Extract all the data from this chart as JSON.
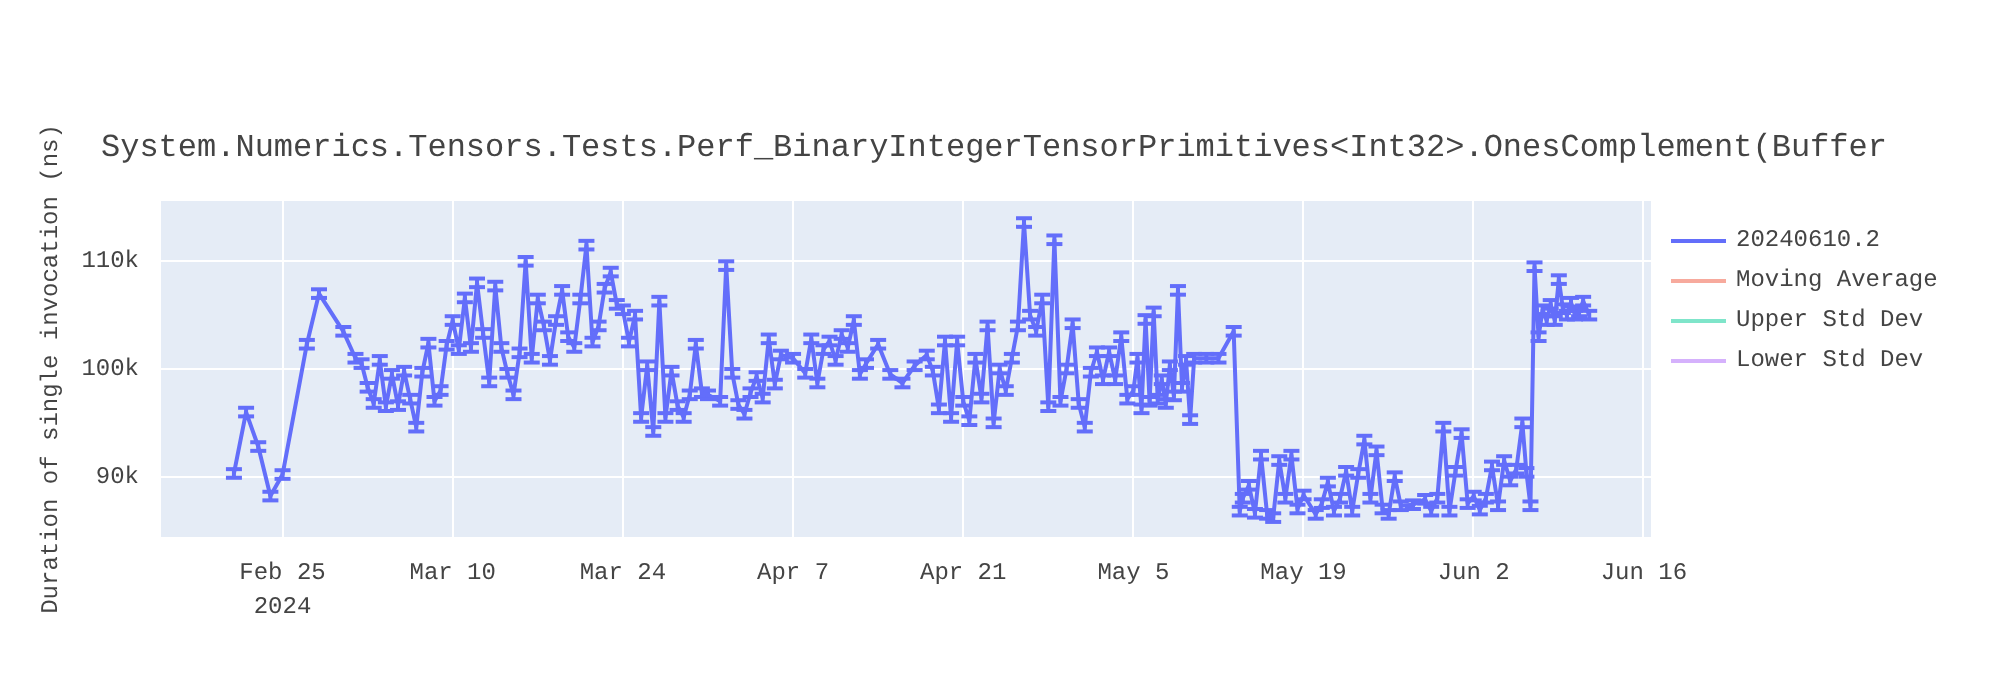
{
  "chart_data": {
    "type": "line",
    "title": "System.Numerics.Tensors.Tests.Perf_BinaryIntegerTensorPrimitives<Int32>.OnesComplement(Buffer",
    "ylabel": "Duration of single invocation (ns)",
    "xlim": [
      "2024-02-15",
      "2024-06-16T14:00"
    ],
    "xticks": [
      {
        "value": "2024-02-25",
        "label": "Feb 25\n2024"
      },
      {
        "value": "2024-03-10",
        "label": "Mar 10"
      },
      {
        "value": "2024-03-24",
        "label": "Mar 24"
      },
      {
        "value": "2024-04-07",
        "label": "Apr 7"
      },
      {
        "value": "2024-04-21",
        "label": "Apr 21"
      },
      {
        "value": "2024-05-05",
        "label": "May 5"
      },
      {
        "value": "2024-05-19",
        "label": "May 19"
      },
      {
        "value": "2024-06-02",
        "label": "Jun 2"
      },
      {
        "value": "2024-06-16",
        "label": "Jun 16"
      }
    ],
    "ylim": [
      84400,
      115600
    ],
    "yticks": [
      {
        "value": 90000,
        "label": "90k"
      },
      {
        "value": 100000,
        "label": "100k"
      },
      {
        "value": 110000,
        "label": "110k"
      }
    ],
    "grid": true,
    "legend": "right",
    "line_style": "solid",
    "series": [
      {
        "name": "20240610.2",
        "color": "#636efa",
        "x": [
          "2024-02-21",
          "2024-02-22",
          "2024-02-23",
          "2024-02-24",
          "2024-02-25",
          "2024-02-27",
          "2024-02-28",
          "2024-03-01",
          "2024-03-02",
          "2024-03-02T12:00",
          "2024-03-03",
          "2024-03-03T12:00",
          "2024-03-04",
          "2024-03-04T12:00",
          "2024-03-05",
          "2024-03-05T12:00",
          "2024-03-06",
          "2024-03-06T12:00",
          "2024-03-07",
          "2024-03-07T12:00",
          "2024-03-08",
          "2024-03-08T12:00",
          "2024-03-09",
          "2024-03-09T12:00",
          "2024-03-10",
          "2024-03-10T12:00",
          "2024-03-11",
          "2024-03-11T12:00",
          "2024-03-12",
          "2024-03-12T12:00",
          "2024-03-13",
          "2024-03-13T12:00",
          "2024-03-14",
          "2024-03-14T12:00",
          "2024-03-15",
          "2024-03-15T12:00",
          "2024-03-16",
          "2024-03-16T12:00",
          "2024-03-17",
          "2024-03-17T12:00",
          "2024-03-18",
          "2024-03-18T12:00",
          "2024-03-19",
          "2024-03-19T12:00",
          "2024-03-20",
          "2024-03-20T12:00",
          "2024-03-21",
          "2024-03-21T12:00",
          "2024-03-22",
          "2024-03-22T12:00",
          "2024-03-23",
          "2024-03-23T12:00",
          "2024-03-24",
          "2024-03-24T12:00",
          "2024-03-25",
          "2024-03-25T12:00",
          "2024-03-26",
          "2024-03-26T12:00",
          "2024-03-27",
          "2024-03-27T12:00",
          "2024-03-28",
          "2024-03-28T12:00",
          "2024-03-29",
          "2024-03-29T12:00",
          "2024-03-30",
          "2024-03-30T12:00",
          "2024-03-31",
          "2024-04-01",
          "2024-04-01T12:00",
          "2024-04-02",
          "2024-04-02T12:00",
          "2024-04-03",
          "2024-04-03T12:00",
          "2024-04-04",
          "2024-04-04T12:00",
          "2024-04-05",
          "2024-04-05T12:00",
          "2024-04-06",
          "2024-04-07",
          "2024-04-08",
          "2024-04-08T12:00",
          "2024-04-09",
          "2024-04-09T12:00",
          "2024-04-10",
          "2024-04-10T12:00",
          "2024-04-11",
          "2024-04-11T12:00",
          "2024-04-12",
          "2024-04-12T12:00",
          "2024-04-13",
          "2024-04-14",
          "2024-04-15",
          "2024-04-16",
          "2024-04-17",
          "2024-04-18",
          "2024-04-18T12:00",
          "2024-04-19",
          "2024-04-19T12:00",
          "2024-04-20",
          "2024-04-20T12:00",
          "2024-04-21",
          "2024-04-21T12:00",
          "2024-04-22",
          "2024-04-22T12:00",
          "2024-04-23",
          "2024-04-23T12:00",
          "2024-04-24",
          "2024-04-24T12:00",
          "2024-04-25",
          "2024-04-25T12:00",
          "2024-04-26",
          "2024-04-26T12:00",
          "2024-04-27",
          "2024-04-27T12:00",
          "2024-04-28",
          "2024-04-28T12:00",
          "2024-04-29",
          "2024-04-29T12:00",
          "2024-04-30",
          "2024-04-30T12:00",
          "2024-05-01",
          "2024-05-01T12:00",
          "2024-05-02",
          "2024-05-02T12:00",
          "2024-05-03",
          "2024-05-03T12:00",
          "2024-05-04",
          "2024-05-04T12:00",
          "2024-05-05",
          "2024-05-05T08:00",
          "2024-05-05T16:00",
          "2024-05-06",
          "2024-05-06T08:00",
          "2024-05-06T16:00",
          "2024-05-07",
          "2024-05-07T08:00",
          "2024-05-07T16:00",
          "2024-05-08",
          "2024-05-08T08:00",
          "2024-05-08T16:00",
          "2024-05-09",
          "2024-05-09T08:00",
          "2024-05-09T16:00",
          "2024-05-10",
          "2024-05-11",
          "2024-05-12",
          "2024-05-13T06:00",
          "2024-05-13T18:00",
          "2024-05-14",
          "2024-05-14T12:00",
          "2024-05-15",
          "2024-05-15T12:00",
          "2024-05-16",
          "2024-05-16T12:00",
          "2024-05-17",
          "2024-05-17T12:00",
          "2024-05-18",
          "2024-05-18T12:00",
          "2024-05-19",
          "2024-05-20",
          "2024-05-20T12:00",
          "2024-05-21",
          "2024-05-21T12:00",
          "2024-05-22",
          "2024-05-22T12:00",
          "2024-05-23",
          "2024-05-23T12:00",
          "2024-05-24",
          "2024-05-24T12:00",
          "2024-05-25",
          "2024-05-25T12:00",
          "2024-05-26",
          "2024-05-26T12:00",
          "2024-05-27",
          "2024-05-28",
          "2024-05-29",
          "2024-05-29T12:00",
          "2024-05-30",
          "2024-05-30T12:00",
          "2024-05-31",
          "2024-05-31T12:00",
          "2024-06-01",
          "2024-06-01T12:00",
          "2024-06-02",
          "2024-06-02T12:00",
          "2024-06-03",
          "2024-06-03T12:00",
          "2024-06-04",
          "2024-06-04T12:00",
          "2024-06-05",
          "2024-06-05T12:00",
          "2024-06-06",
          "2024-06-06T08:00",
          "2024-06-06T16:00",
          "2024-06-07",
          "2024-06-07T08:00",
          "2024-06-07T16:00",
          "2024-06-08",
          "2024-06-08T08:00",
          "2024-06-08T16:00",
          "2024-06-09",
          "2024-06-09T08:00",
          "2024-06-09T16:00",
          "2024-06-10",
          "2024-06-10T08:00",
          "2024-06-10T16:00",
          "2024-06-11",
          "2024-06-11T12:00"
        ],
        "values": [
          90300,
          96000,
          92800,
          88200,
          90200,
          102300,
          107000,
          103500,
          101000,
          100500,
          98300,
          96800,
          100800,
          96500,
          99500,
          96600,
          99800,
          97200,
          94600,
          99700,
          102400,
          97000,
          98000,
          102200,
          104500,
          101800,
          106600,
          102000,
          108000,
          103300,
          98800,
          107700,
          102000,
          99600,
          97600,
          101500,
          110000,
          101000,
          106500,
          104000,
          100800,
          104500,
          107300,
          103000,
          102000,
          106500,
          111500,
          102500,
          104000,
          107500,
          109000,
          106000,
          105500,
          102500,
          105000,
          95500,
          100300,
          94200,
          106300,
          95500,
          99800,
          96600,
          95500,
          97600,
          102300,
          97800,
          97600,
          97000,
          109600,
          99600,
          96700,
          95800,
          97800,
          99300,
          97300,
          102800,
          98600,
          101300,
          101000,
          99600,
          102800,
          98700,
          101800,
          102600,
          100800,
          103200,
          102000,
          104500,
          99500,
          100500,
          102300,
          99500,
          98700,
          100300,
          101300,
          99800,
          96300,
          102600,
          95500,
          102600,
          97000,
          95200,
          101000,
          97300,
          104000,
          95000,
          100000,
          98000,
          101000,
          104000,
          113600,
          105000,
          103500,
          106500,
          96500,
          112000,
          97000,
          100000,
          104200,
          96800,
          94600,
          99700,
          101600,
          99000,
          101600,
          99000,
          103000,
          97200,
          98000,
          101000,
          96300,
          104600,
          97000,
          105300,
          97200,
          99000,
          96800,
          100300,
          97500,
          107300,
          98300,
          100800,
          95300,
          101000,
          101000,
          101000,
          103500,
          86800,
          88000,
          89200,
          86600,
          92000,
          86500,
          86200,
          91500,
          88000,
          92000,
          87000,
          88300,
          86500,
          87500,
          89500,
          86800,
          88000,
          90500,
          86800,
          90300,
          93400,
          88000,
          92400,
          87000,
          86500,
          90000,
          87300,
          87400,
          87900,
          86800,
          88000,
          94600,
          86800,
          90500,
          94000,
          87500,
          88200,
          86900,
          88000,
          91000,
          87300,
          91500,
          89600,
          90700,
          95000,
          90400,
          87300,
          109500,
          103000,
          105500,
          104500,
          106000,
          104500,
          108300,
          105600,
          105000,
          106200,
          105000,
          105300,
          106300,
          105000
        ],
        "errors": [
          400,
          400,
          400,
          400,
          400,
          400,
          400,
          400,
          400,
          400,
          400,
          400,
          400,
          400,
          400,
          400,
          400,
          400,
          400,
          400,
          400,
          400,
          400,
          400,
          400,
          400,
          400,
          400,
          400,
          400,
          400,
          400,
          400,
          400,
          400,
          400,
          400,
          400,
          400,
          400,
          400,
          400,
          400,
          400,
          400,
          400,
          400,
          400,
          400,
          400,
          400,
          400,
          400,
          400,
          400,
          400,
          400,
          400,
          400,
          400,
          400,
          400,
          400,
          400,
          400,
          400,
          400,
          400,
          400,
          400,
          400,
          400,
          400,
          400,
          400,
          400,
          400,
          400,
          400,
          400,
          400,
          400,
          400,
          400,
          400,
          400,
          400,
          400,
          400,
          400,
          400,
          400,
          400,
          400,
          400,
          400,
          400,
          400,
          400,
          400,
          400,
          400,
          400,
          400,
          400,
          400,
          400,
          400,
          400,
          400,
          400,
          400,
          400,
          400,
          400,
          400,
          400,
          400,
          400,
          400,
          400,
          400,
          400,
          400,
          400,
          400,
          400,
          400,
          400,
          400,
          400,
          400,
          400,
          400,
          400,
          400,
          400,
          400,
          400,
          400,
          400,
          400,
          400,
          400,
          400,
          400,
          400,
          400,
          400,
          400,
          400,
          400,
          400,
          400,
          400,
          400,
          400,
          400,
          400,
          400,
          400,
          400,
          400,
          400,
          400,
          400,
          400,
          400,
          400,
          400,
          400,
          400,
          400,
          400,
          400,
          400,
          400,
          400,
          400,
          400,
          400,
          400,
          400,
          400,
          400,
          400,
          400,
          400,
          400,
          400,
          400,
          400,
          400,
          400,
          400,
          400,
          400,
          400,
          400,
          400,
          400,
          400,
          400,
          400,
          400,
          400,
          400,
          400
        ]
      },
      {
        "name": "Moving Average",
        "color": "#ef553b"
      },
      {
        "name": "Upper Std Dev",
        "color": "#00cc96"
      },
      {
        "name": "Lower Std Dev",
        "color": "#ab63fa"
      }
    ]
  }
}
